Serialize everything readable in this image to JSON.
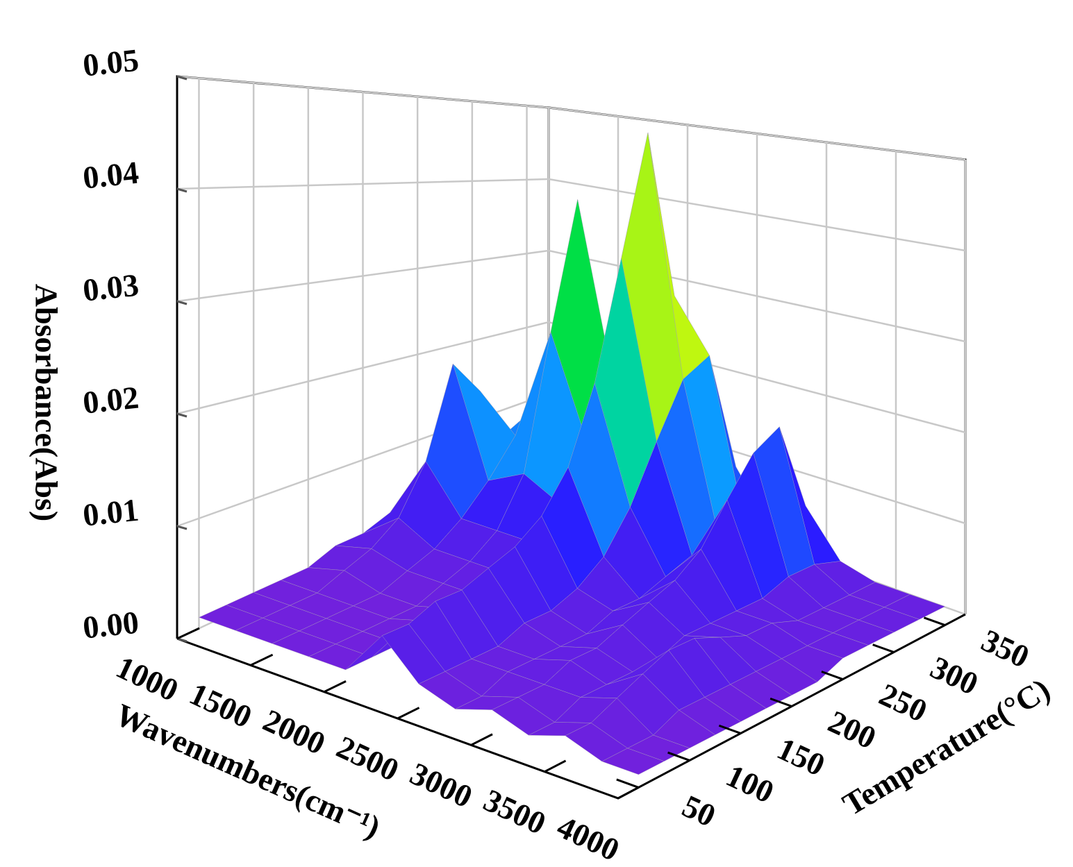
{
  "chart_data": {
    "type": "surface3d",
    "xlabel": "Wavenumbers(cm⁻¹)",
    "ylabel": "Temperature(°C)",
    "zlabel": "Absorbance(Abs)",
    "x": [
      1000,
      1250,
      1500,
      1750,
      2000,
      2250,
      2500,
      2750,
      3000,
      3250,
      3500,
      3750,
      4000
    ],
    "y": [
      50,
      75,
      100,
      125,
      150,
      175,
      200,
      225,
      250,
      275,
      300,
      325,
      350
    ],
    "z": [
      [
        0.001,
        0.001,
        0.001,
        0.001,
        0.001,
        0.005,
        0.002,
        0.001,
        0.002,
        0.001,
        0.002,
        0.001,
        0.001
      ],
      [
        0.001,
        0.001,
        0.001,
        0.001,
        0.001,
        0.005,
        0.002,
        0.001,
        0.002,
        0.001,
        0.002,
        0.001,
        0.001
      ],
      [
        0.001,
        0.001,
        0.001,
        0.001,
        0.001,
        0.006,
        0.002,
        0.002,
        0.002,
        0.002,
        0.003,
        0.001,
        0.001
      ],
      [
        0.001,
        0.001,
        0.001,
        0.001,
        0.002,
        0.006,
        0.002,
        0.002,
        0.003,
        0.002,
        0.004,
        0.002,
        0.001
      ],
      [
        0.001,
        0.002,
        0.001,
        0.001,
        0.002,
        0.007,
        0.003,
        0.002,
        0.003,
        0.002,
        0.005,
        0.002,
        0.001
      ],
      [
        0.002,
        0.003,
        0.002,
        0.002,
        0.002,
        0.008,
        0.003,
        0.002,
        0.004,
        0.002,
        0.005,
        0.002,
        0.001
      ],
      [
        0.002,
        0.005,
        0.003,
        0.003,
        0.003,
        0.01,
        0.004,
        0.003,
        0.005,
        0.003,
        0.004,
        0.002,
        0.001
      ],
      [
        0.003,
        0.01,
        0.005,
        0.005,
        0.005,
        0.014,
        0.006,
        0.003,
        0.006,
        0.003,
        0.003,
        0.002,
        0.001
      ],
      [
        0.004,
        0.02,
        0.008,
        0.01,
        0.008,
        0.022,
        0.01,
        0.004,
        0.008,
        0.003,
        0.003,
        0.002,
        0.002
      ],
      [
        0.004,
        0.016,
        0.012,
        0.025,
        0.014,
        0.035,
        0.016,
        0.005,
        0.012,
        0.003,
        0.002,
        0.002,
        0.002
      ],
      [
        0.003,
        0.01,
        0.015,
        0.04,
        0.02,
        0.049,
        0.022,
        0.006,
        0.016,
        0.004,
        0.002,
        0.002,
        0.002
      ],
      [
        0.003,
        0.006,
        0.01,
        0.02,
        0.012,
        0.03,
        0.024,
        0.006,
        0.018,
        0.004,
        0.002,
        0.002,
        0.002
      ],
      [
        0.002,
        0.004,
        0.005,
        0.008,
        0.006,
        0.012,
        0.01,
        0.004,
        0.008,
        0.003,
        0.002,
        0.002,
        0.002
      ]
    ],
    "xlim": [
      1000,
      4000
    ],
    "xticks": [
      1000,
      1500,
      2000,
      2500,
      3000,
      3500,
      4000
    ],
    "ylim": [
      30,
      370
    ],
    "yticks": [
      50,
      100,
      150,
      200,
      250,
      300,
      350
    ],
    "zlim": [
      0,
      0.05
    ],
    "zticks": [
      {
        "value": 0,
        "label": "0.00"
      },
      0.01,
      0.02,
      0.03,
      0.04,
      0.05
    ],
    "grid": true,
    "colormap": [
      "#7b22d8",
      "#2a1cff",
      "#00c8ff",
      "#00e040",
      "#ffff00",
      "#ff8000",
      "#b00000"
    ]
  }
}
